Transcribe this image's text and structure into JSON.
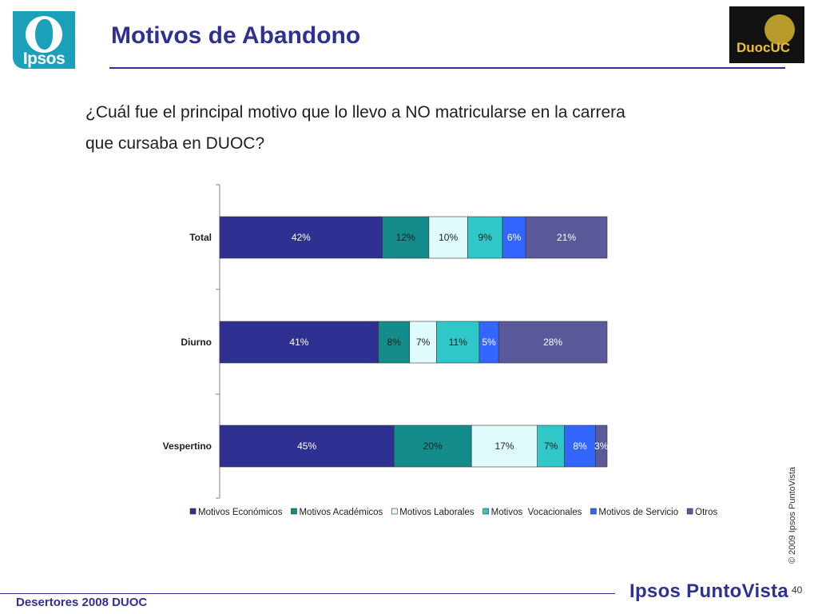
{
  "header": {
    "logo_text": "Ipsos",
    "title": "Motivos de Abandono",
    "partner_logo_text": "DuocUC"
  },
  "question": "¿Cuál fue el principal motivo que lo llevo a NO matricularse en la carrera que cursaba en DUOC?",
  "chart_data": {
    "type": "bar",
    "orientation": "horizontal",
    "stacked": true,
    "percent": true,
    "categories": [
      "Total",
      "Diurno",
      "Vespertino"
    ],
    "series": [
      {
        "name": "Motivos Económicos",
        "color": "#2e3192",
        "label_color": "#ffffff",
        "values": [
          42,
          41,
          45
        ],
        "labels": [
          "42%",
          "41%",
          "45%"
        ]
      },
      {
        "name": "Motivos Académicos",
        "color": "#148c8c",
        "label_color": "#1f1f1f",
        "values": [
          12,
          8,
          20
        ],
        "labels": [
          "12%",
          "8%",
          "20%"
        ]
      },
      {
        "name": "Motivos Laborales",
        "color": "#e0fbfc",
        "label_color": "#1f1f1f",
        "values": [
          10,
          7,
          17
        ],
        "labels": [
          "10%",
          "7%",
          "17%"
        ]
      },
      {
        "name": "Motivos  Vocacionales",
        "color": "#2fc7c7",
        "label_color": "#1f1f1f",
        "values": [
          9,
          11,
          7
        ],
        "labels": [
          "9%",
          "11%",
          "7%"
        ]
      },
      {
        "name": "Motivos de Servicio",
        "color": "#3366ff",
        "label_color": "#ffffff",
        "values": [
          6,
          5,
          8
        ],
        "labels": [
          "6%",
          "5%",
          "8%"
        ]
      },
      {
        "name": "Otros",
        "color": "#5a5a9a",
        "label_color": "#ffffff",
        "values": [
          21,
          28,
          3
        ],
        "labels": [
          "21%",
          "28%",
          "3%"
        ]
      }
    ],
    "legend_position": "bottom",
    "grid": false
  },
  "copyright": "© 2009 Ipsos PuntoVista",
  "footer": {
    "left_text": "Desertores 2008 DUOC",
    "brand": "Ipsos PuntoVista",
    "page": "40"
  }
}
